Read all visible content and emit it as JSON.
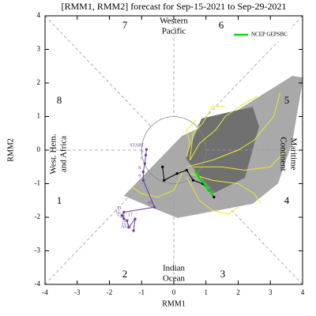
{
  "chart_data": {
    "type": "line",
    "title": "[RMM1, RMM2] forecast for Sep-15-2021 to Sep-29-2021",
    "x_label": "RMM1",
    "y_label": "RMM2",
    "xlim": [
      -4,
      4
    ],
    "ylim": [
      -4,
      4
    ],
    "xticks": [
      -4,
      -3,
      -2,
      -1,
      0,
      1,
      2,
      3,
      4
    ],
    "yticks": [
      -4,
      -3,
      -2,
      -1,
      0,
      1,
      2,
      3,
      4
    ],
    "phases": [
      "1",
      "2",
      "3",
      "4",
      "5",
      "6",
      "7",
      "8"
    ],
    "regions": {
      "western_pacific": [
        "Western",
        "Pacific"
      ],
      "maritime_continent": [
        "Maritime",
        "Continent"
      ],
      "indian_ocean": [
        "Indian",
        "Ocean"
      ],
      "west_hem_africa": [
        "West. Hem.",
        "and Africa"
      ]
    },
    "legend_position": "upper right",
    "polygons": [
      {
        "color": "#a9a9a9",
        "x": [
          -1.55,
          0.25,
          1.96,
          3.68,
          4.02,
          3.68,
          3.24,
          2.45,
          0.12,
          -0.74
        ],
        "y": [
          -1.36,
          0.42,
          1.18,
          2.21,
          2.16,
          0.24,
          -0.99,
          -1.6,
          -2.02,
          -1.69
        ]
      },
      {
        "color": "#707070",
        "x": [
          0.86,
          2.45,
          2.65,
          2.21,
          1.23,
          0.37
        ],
        "y": [
          0.94,
          1.29,
          0.71,
          -0.82,
          -1.29,
          -0.24
        ]
      }
    ],
    "series": [
      {
        "color": "#e8e830",
        "x": [
          0.5,
          0.8,
          1.3,
          1.6,
          2.2,
          2.6
        ],
        "y": [
          -0.3,
          0.2,
          0.6,
          1.0,
          1.4,
          1.6
        ]
      },
      {
        "color": "#e8e830",
        "x": [
          0.5,
          0.6,
          0.9,
          1.2,
          1.6
        ],
        "y": [
          -0.3,
          0.5,
          0.8,
          1.3,
          1.3
        ]
      },
      {
        "color": "#e8e830",
        "x": [
          0.4,
          1.2,
          2.0,
          2.5,
          3.1,
          3.3
        ],
        "y": [
          -0.5,
          -0.3,
          0.0,
          0.3,
          1.0,
          1.7
        ]
      },
      {
        "color": "#e8e830",
        "x": [
          0.3,
          0.0,
          -0.5,
          -1.0,
          -1.3
        ],
        "y": [
          -0.6,
          -1.2,
          -1.4,
          -1.3,
          -1.1
        ]
      },
      {
        "color": "#e8e830",
        "x": [
          0.5,
          1.2,
          2.0,
          2.5,
          2.7
        ],
        "y": [
          -0.7,
          -0.9,
          -1.0,
          -1.3,
          -1.6
        ]
      },
      {
        "color": "#e8e830",
        "x": [
          0.4,
          0.8,
          1.2,
          1.7,
          2.0
        ],
        "y": [
          -0.8,
          -1.5,
          -1.8,
          -1.9,
          -1.7
        ]
      },
      {
        "color": "#e8e830",
        "x": [
          0.4,
          0.5,
          0.4,
          0.7
        ],
        "y": [
          -0.2,
          0.2,
          0.6,
          0.9
        ]
      },
      {
        "color": "#e8e830",
        "x": [
          0.6,
          1.5,
          2.2,
          3.0,
          3.5
        ],
        "y": [
          -0.5,
          -0.5,
          -0.6,
          -0.5,
          0.0
        ]
      },
      {
        "color": "#6a3d9a",
        "marker": true,
        "x": [
          -0.85,
          -0.87,
          -0.9,
          -0.95,
          -0.95,
          -0.6,
          -1.55,
          -1.6,
          -1.55,
          -1.45,
          -1.4,
          -1.2,
          -1.25
        ],
        "y": [
          0.02,
          -0.15,
          -0.4,
          -0.65,
          -0.9,
          -1.7,
          -1.85,
          -1.95,
          -2.05,
          -2.1,
          -2.3,
          -2.05,
          -2.4
        ],
        "point_labels": [
          "START",
          "6",
          "7",
          "8",
          "9",
          "10",
          "11",
          "12",
          "13",
          "14",
          "15",
          "17",
          "AUG"
        ]
      },
      {
        "color": "#000000",
        "marker": true,
        "x": [
          -0.35,
          -0.3,
          0.1,
          0.4,
          0.6,
          0.9,
          1.1,
          1.25
        ],
        "y": [
          -0.5,
          -0.9,
          -0.7,
          -0.6,
          -0.9,
          -1.0,
          -1.2,
          -1.4
        ]
      },
      {
        "name": "NCEP GEPSBC",
        "color": "#00e000",
        "width": 2.5,
        "x": [
          0.65,
          0.8,
          0.95,
          1.05,
          1.15,
          1.2
        ],
        "y": [
          -0.6,
          -0.85,
          -1.0,
          -1.15,
          -1.25,
          -1.35
        ]
      }
    ]
  }
}
